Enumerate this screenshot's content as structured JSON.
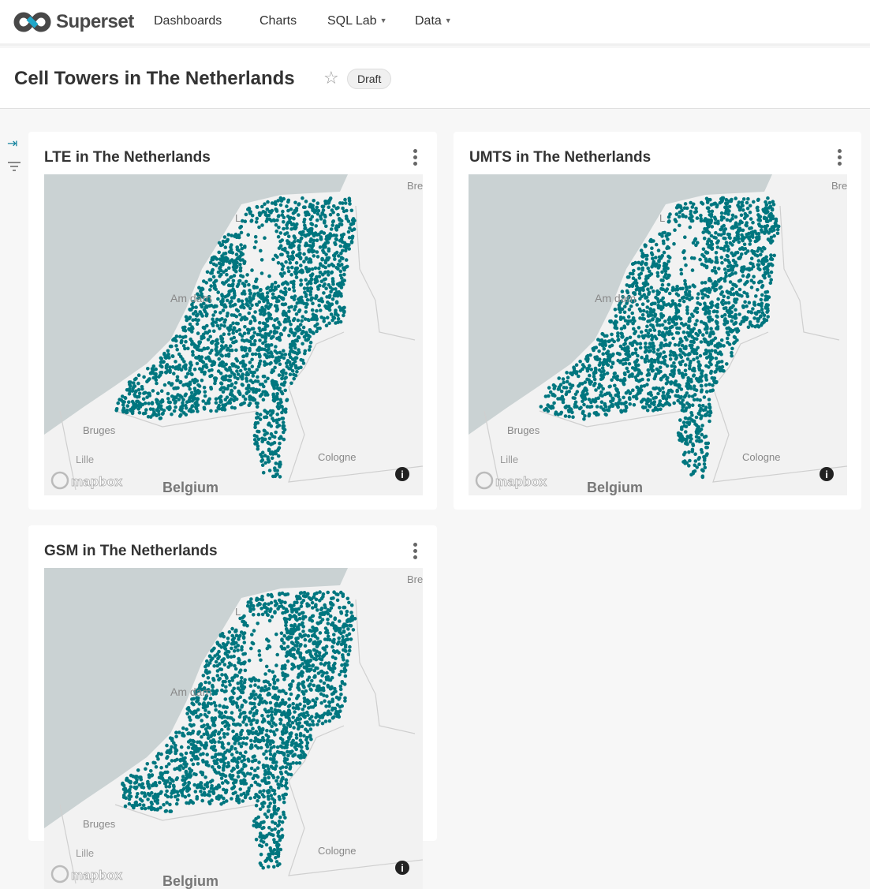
{
  "nav": {
    "brand": "Superset",
    "items": [
      {
        "label": "Dashboards"
      },
      {
        "label": "Charts"
      },
      {
        "label": "SQL Lab",
        "dropdown": true
      },
      {
        "label": "Data",
        "dropdown": true
      }
    ]
  },
  "header": {
    "title": "Cell Towers in The Netherlands",
    "status": "Draft"
  },
  "colors": {
    "accent": "#1a85a0",
    "points": "#00767f",
    "sea": "#cad2d3",
    "land": "#f2f2f2"
  },
  "charts": [
    {
      "title": "LTE in The Netherlands"
    },
    {
      "title": "UMTS in The Netherlands"
    },
    {
      "title": "GSM in The Netherlands"
    }
  ],
  "map_labels": {
    "bremen": "Bre",
    "amsterdam": "Am   dam",
    "leeuwarden": "L",
    "bruges": "Bruges",
    "cologne": "Cologne",
    "belgium": "Belgium",
    "lille": "Lille",
    "attribution": "mapbox"
  }
}
